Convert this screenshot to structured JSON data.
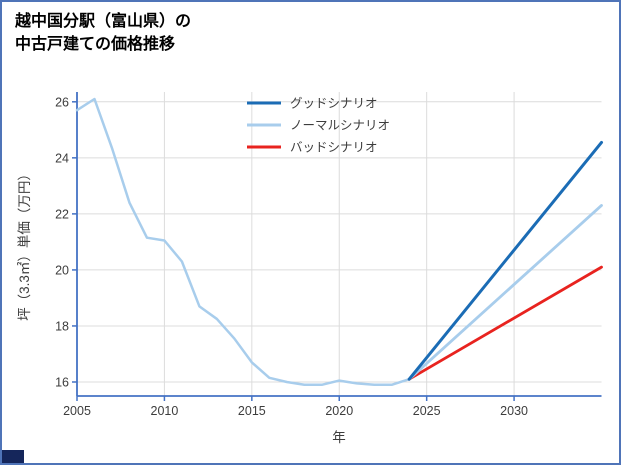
{
  "page": {
    "title_line1": "越中国分駅（富山県）の",
    "title_line2": "中古戸建ての価格推移",
    "border_color": "#4f74b8",
    "corner_color": "#15265b"
  },
  "chart_data": {
    "type": "line",
    "title": "越中国分駅（富山県）の中古戸建ての価格推移",
    "xlabel": "年",
    "ylabel": "坪（3.3㎡）単価（万円）",
    "xlim": [
      2005,
      2035
    ],
    "ylim": [
      15.5,
      26.35
    ],
    "xticks": [
      2005,
      2010,
      2015,
      2020,
      2025,
      2030
    ],
    "yticks": [
      16,
      18,
      20,
      22,
      24,
      26
    ],
    "grid": true,
    "legend_position": "top-center-inside",
    "colors": {
      "axis": "#4472c4",
      "grid": "#dcdcdc",
      "tick_text": "#3d3d3d"
    },
    "series": [
      {
        "id": "history",
        "name": "実績",
        "legend": false,
        "color": "#a8cdec",
        "width": 2.5,
        "x": [
          2005,
          2006,
          2007,
          2008,
          2009,
          2010,
          2011,
          2012,
          2013,
          2014,
          2015,
          2016,
          2017,
          2018,
          2019,
          2020,
          2021,
          2022,
          2023,
          2024
        ],
        "y": [
          25.7,
          26.1,
          24.35,
          22.4,
          21.15,
          21.05,
          20.3,
          18.7,
          18.25,
          17.55,
          16.7,
          16.15,
          16.0,
          15.9,
          15.9,
          16.05,
          15.95,
          15.9,
          15.9,
          16.1
        ]
      },
      {
        "id": "bad",
        "name": "バッドシナリオ",
        "legend": true,
        "color": "#e8231f",
        "width": 2.8,
        "x": [
          2024,
          2035
        ],
        "y": [
          16.1,
          20.1
        ]
      },
      {
        "id": "normal",
        "name": "ノーマルシナリオ",
        "legend": true,
        "color": "#a8cdec",
        "width": 2.8,
        "x": [
          2024,
          2035
        ],
        "y": [
          16.1,
          22.3
        ]
      },
      {
        "id": "good",
        "name": "グッドシナリオ",
        "legend": true,
        "color": "#1b6cb5",
        "width": 3.0,
        "x": [
          2024,
          2035
        ],
        "y": [
          16.1,
          24.55
        ]
      }
    ],
    "legend_order": [
      "good",
      "normal",
      "bad"
    ]
  }
}
